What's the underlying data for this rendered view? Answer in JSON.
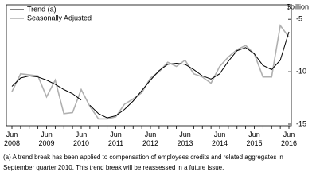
{
  "chart_data": {
    "type": "line",
    "y_axis_label": "$billion",
    "categories": [
      "Jun 2008",
      null,
      null,
      null,
      "Jun 2009",
      null,
      null,
      null,
      "Jun 2010",
      null,
      null,
      null,
      "Jun 2011",
      null,
      null,
      null,
      "Jun 2012",
      null,
      null,
      null,
      "Jun 2013",
      null,
      null,
      null,
      "Jun 2014",
      null,
      null,
      null,
      "Jun 2015",
      null,
      null,
      null,
      "Jun 2016"
    ],
    "series": [
      {
        "name": "Trend (a)",
        "color": "#000000",
        "break_after": 8,
        "values": [
          -11.4,
          -10.6,
          -10.4,
          -10.5,
          -10.8,
          -11.2,
          -11.7,
          -12.1,
          -12.7,
          -13.2,
          -14.0,
          -14.4,
          -14.2,
          -13.6,
          -12.8,
          -11.8,
          -10.8,
          -9.9,
          -9.3,
          -9.2,
          -9.3,
          -9.8,
          -10.4,
          -10.7,
          -10.2,
          -9.0,
          -8.0,
          -7.7,
          -8.3,
          -9.4,
          -9.8,
          -8.9,
          -6.2
        ]
      },
      {
        "name": "Seasonally Adjusted",
        "color": "#b0b0b0",
        "values": [
          -11.9,
          -10.2,
          -10.3,
          -10.4,
          -12.4,
          -10.8,
          -14.0,
          -13.9,
          -11.7,
          -13.3,
          -14.5,
          -14.5,
          -14.3,
          -13.1,
          -12.6,
          -12.0,
          -10.6,
          -10.0,
          -9.1,
          -9.5,
          -8.9,
          -10.2,
          -10.5,
          -11.1,
          -9.5,
          -8.6,
          -7.9,
          -7.5,
          -8.3,
          -10.5,
          -10.5,
          -5.6,
          -6.7
        ]
      }
    ],
    "ylim": [
      -15,
      -4
    ],
    "yticks": [
      -5,
      -10,
      -15
    ],
    "footnote": "(a) A trend break has been applied to compensation of employees credits and related aggregates in September quarter 2010. This trend break will be reassessed in a future issue."
  }
}
